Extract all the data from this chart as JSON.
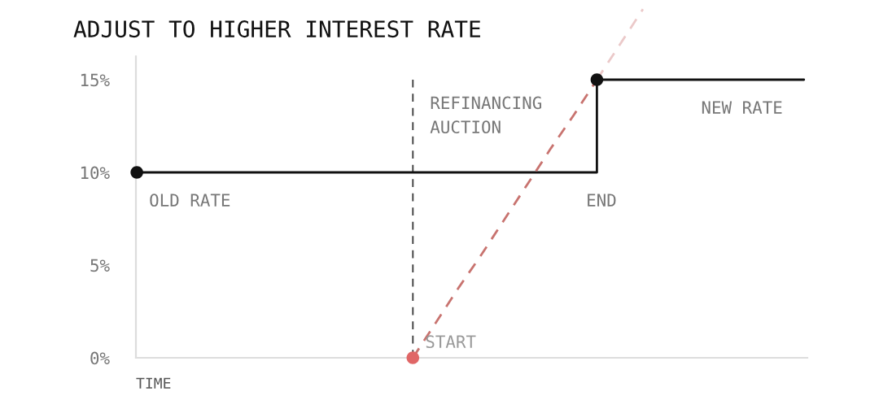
{
  "chart_data": {
    "type": "step",
    "title": "ADJUST TO HIGHER INTEREST RATE",
    "xlabel": "TIME",
    "annotations": [
      "REFINANCING\nAUCTION"
    ],
    "categories": [
      null,
      null,
      null,
      null,
      null,
      null,
      null,
      null,
      null,
      null,
      null,
      null,
      null,
      null,
      null,
      null,
      null,
      null,
      null,
      null,
      null,
      null,
      null,
      null,
      null,
      null,
      null,
      null,
      null,
      null
    ],
    "series": [
      {
        "color": "#111111",
        "line_style": "solid",
        "values": [
          10,
          10,
          10,
          10,
          10,
          10,
          10,
          10,
          10,
          10,
          10,
          10,
          10,
          10,
          10,
          10,
          10,
          10,
          10,
          10,
          15,
          15,
          15,
          15,
          15,
          15,
          15,
          15,
          15,
          15
        ],
        "value_labels": [
          "OLD RATE",
          null,
          null,
          null,
          null,
          null,
          null,
          null,
          null,
          null,
          null,
          null,
          null,
          null,
          null,
          null,
          null,
          null,
          null,
          "END",
          null,
          null,
          null,
          null,
          "NEW RATE",
          null,
          null,
          null,
          null,
          null
        ]
      },
      {
        "type": "line",
        "color": "#c8736f",
        "line_style": "dashed",
        "values": [
          null,
          null,
          null,
          null,
          null,
          null,
          null,
          null,
          null,
          null,
          null,
          null,
          0,
          1.9,
          3.8,
          5.6,
          7.5,
          9.4,
          11.3,
          13.1,
          15,
          null,
          null,
          null,
          null,
          null,
          null,
          null,
          null,
          null
        ]
      },
      {
        "type": "line",
        "color": "#ebc9c9",
        "line_style": "dashed",
        "values": [
          null,
          null,
          null,
          null,
          null,
          null,
          null,
          null,
          null,
          null,
          null,
          null,
          null,
          null,
          null,
          null,
          null,
          null,
          null,
          null,
          15,
          16.9,
          18.8,
          null,
          null,
          null,
          null,
          null,
          null,
          null
        ]
      },
      {
        "type": "scatter",
        "color": "#111111",
        "marker": "circle",
        "values": [
          10,
          null,
          null,
          null,
          null,
          null,
          null,
          null,
          null,
          null,
          null,
          null,
          null,
          null,
          null,
          null,
          null,
          null,
          null,
          null,
          15,
          null,
          null,
          null,
          null,
          null,
          null,
          null,
          null,
          null
        ]
      },
      {
        "type": "scatter",
        "color": "#e06666",
        "marker": "circle",
        "values": [
          null,
          null,
          null,
          null,
          null,
          null,
          null,
          null,
          null,
          null,
          null,
          null,
          0,
          null,
          null,
          null,
          null,
          null,
          null,
          null,
          null,
          null,
          null,
          null,
          null,
          null,
          null,
          null,
          null,
          null
        ],
        "value_labels": [
          null,
          null,
          null,
          null,
          null,
          null,
          null,
          null,
          null,
          null,
          null,
          null,
          "START",
          null,
          null,
          null,
          null,
          null,
          null,
          null,
          null,
          null,
          null,
          null,
          null,
          null,
          null,
          null,
          null,
          null
        ]
      }
    ],
    "ylim": [
      0,
      18.8
    ],
    "yticks": [
      {
        "value": 0,
        "label": "0%"
      },
      {
        "value": 5,
        "label": "5%"
      },
      {
        "value": 10,
        "label": "10%"
      },
      {
        "value": 15,
        "label": "15%"
      }
    ],
    "tick_labels": "y"
  }
}
